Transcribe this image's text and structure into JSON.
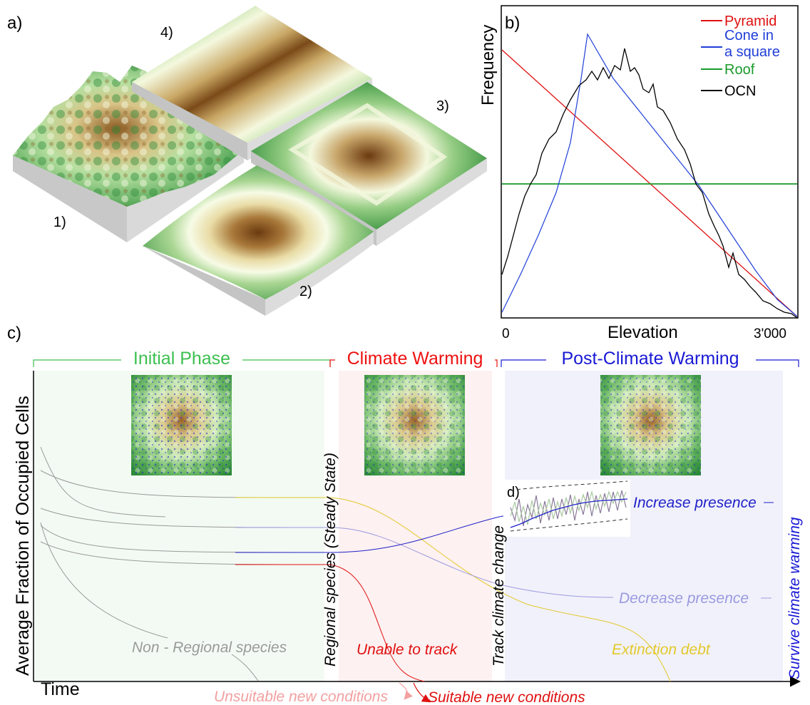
{
  "panel_a": {
    "label": "a)",
    "surfaces": [
      {
        "id": "1",
        "label": "1)",
        "name": "OCN"
      },
      {
        "id": "2",
        "label": "2)",
        "name": "Cone in a square"
      },
      {
        "id": "3",
        "label": "3)",
        "name": "Pyramid"
      },
      {
        "id": "4",
        "label": "4)",
        "name": "Roof"
      }
    ]
  },
  "panel_b": {
    "label": "b)",
    "ylabel": "Frequency",
    "xlabel": "Elevation",
    "x_ticks": [
      "0",
      "3'000"
    ],
    "legend": [
      {
        "name": "Pyramid",
        "color": "#e01010"
      },
      {
        "name": "Cone in",
        "name2": "a square",
        "color": "#1f3fd8"
      },
      {
        "name": "Roof",
        "color": "#1a9a2a"
      },
      {
        "name": "OCN",
        "color": "#000000"
      }
    ]
  },
  "panel_c": {
    "label": "c)",
    "ylabel": "Average Fraction of Occupied Cells",
    "xlabel": "Time",
    "phases": [
      {
        "name": "Initial Phase",
        "color": "#3dbf4f",
        "bg": "#f3faf3"
      },
      {
        "name": "Climate Warming",
        "color": "#ee1111",
        "bg": "#fdf1f1"
      },
      {
        "name": "Post-Climate Warming",
        "color": "#1a1ad6",
        "bg": "#f1f1fb"
      }
    ],
    "vertical_labels": {
      "regional": "Regional species (Steady State)",
      "track": "Track climate change",
      "survive": "Survive climate warming"
    },
    "annotations": {
      "non_regional": "Non - Regional species",
      "unable": "Unable to track",
      "extinction": "Extinction debt",
      "increase": "Increase presence",
      "decrease": "Decrease presence",
      "unsuitable": "Unsuitable new conditions",
      "suitable": "Suitable new conditions"
    },
    "inset_label": "d)",
    "colors": {
      "non_regional": "#9a9a9a",
      "unable": "#e01010",
      "extinction": "#e3c92a",
      "increase": "#2020c8",
      "decrease": "#9a9ae0",
      "unsuitable": "#f2a0a0",
      "suitable": "#e01010"
    }
  }
}
